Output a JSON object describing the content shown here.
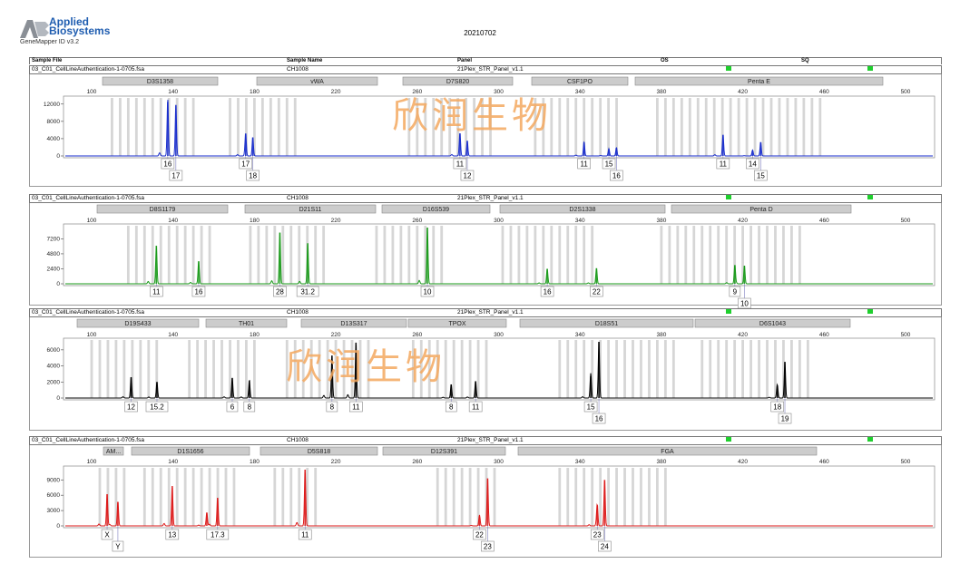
{
  "header": {
    "logo_line1": "Applied",
    "logo_line2": "Biosystems",
    "software": "GeneMapper ID v3.2",
    "date": "20210702",
    "columns": {
      "sample_file": "Sample File",
      "sample_name": "Sample Name",
      "panel": "Panel",
      "os": "OS",
      "sq": "SQ"
    }
  },
  "watermark": "欣润生物",
  "colors": {
    "blue": "#1a2ecc",
    "green": "#1a9a1a",
    "black": "#000000",
    "red": "#dd1a1a",
    "flag": "#1fcf2e",
    "bin": "#c8c8c8",
    "marker": "#cccccc"
  },
  "x_ticks": [
    "100",
    "140",
    "180",
    "220",
    "260",
    "300",
    "340",
    "380",
    "420",
    "460",
    "500"
  ],
  "chart_data": [
    {
      "type": "line",
      "dye": "blue",
      "sample_file": "03_C01_CellLineAuthentication-1-0705.fsa",
      "sample_name": "CH1008",
      "panel": "21Plex_STR_Panel_v1.1",
      "y_ticks": [
        "12000",
        "8000",
        "4000",
        "0"
      ],
      "ylim": [
        0,
        13000
      ],
      "markers": [
        "D3S1358",
        "vWA",
        "D7S820",
        "CSF1PO",
        "Penta E"
      ],
      "peaks": [
        {
          "x": 137.4,
          "y": 12500,
          "label": "16"
        },
        {
          "x": 141.4,
          "y": 11800,
          "label": "17"
        },
        {
          "x": 175.7,
          "y": 5200,
          "label": "17"
        },
        {
          "x": 179.2,
          "y": 4300,
          "label": "18"
        },
        {
          "x": 281.0,
          "y": 5200,
          "label": "11"
        },
        {
          "x": 284.6,
          "y": 3500,
          "label": "12"
        },
        {
          "x": 342.0,
          "y": 3200,
          "label": "11"
        },
        {
          "x": 354.2,
          "y": 1600,
          "label": "15"
        },
        {
          "x": 357.9,
          "y": 1900,
          "label": "16"
        },
        {
          "x": 410.3,
          "y": 4900,
          "label": "11"
        },
        {
          "x": 424.8,
          "y": 1200,
          "label": "14"
        },
        {
          "x": 428.8,
          "y": 3200,
          "label": "15"
        }
      ]
    },
    {
      "type": "line",
      "dye": "green",
      "sample_file": "03_C01_CellLineAuthentication-1-0705.fsa",
      "sample_name": "CH1008",
      "panel": "21Plex_STR_Panel_v1.1",
      "y_ticks": [
        "7200",
        "4800",
        "2400",
        "0"
      ],
      "ylim": [
        0,
        9000
      ],
      "markers": [
        "D8S1179",
        "D21S11",
        "D16S539",
        "D2S1338",
        "Penta D"
      ],
      "peaks": [
        {
          "x": 131.8,
          "y": 6100,
          "label": "11"
        },
        {
          "x": 152.6,
          "y": 3600,
          "label": "16"
        },
        {
          "x": 192.5,
          "y": 8200,
          "label": "28"
        },
        {
          "x": 206.2,
          "y": 6500,
          "label": "31.2"
        },
        {
          "x": 265.0,
          "y": 9000,
          "label": "10"
        },
        {
          "x": 323.9,
          "y": 2400,
          "label": "16"
        },
        {
          "x": 348.1,
          "y": 2500,
          "label": "22"
        },
        {
          "x": 416.1,
          "y": 3000,
          "label": "9"
        },
        {
          "x": 420.8,
          "y": 2900,
          "label": "10"
        }
      ]
    },
    {
      "type": "line",
      "dye": "black",
      "sample_file": "03_C01_CellLineAuthentication-1-0705.fsa",
      "sample_name": "CH1008",
      "panel": "21Plex_STR_Panel_v1.1",
      "y_ticks": [
        "6000",
        "4000",
        "2000",
        "0"
      ],
      "ylim": [
        0,
        7000
      ],
      "markers": [
        "D19S433",
        "TH01",
        "D13S317",
        "TPOX",
        "D18S51",
        "D6S1043"
      ],
      "peaks": [
        {
          "x": 119.4,
          "y": 2600,
          "label": "12"
        },
        {
          "x": 132.1,
          "y": 2000,
          "label": "15.2"
        },
        {
          "x": 169.1,
          "y": 2500,
          "label": "6"
        },
        {
          "x": 177.5,
          "y": 2200,
          "label": "8"
        },
        {
          "x": 218.1,
          "y": 5300,
          "label": "8"
        },
        {
          "x": 229.9,
          "y": 6900,
          "label": "11"
        },
        {
          "x": 276.7,
          "y": 1700,
          "label": "8"
        },
        {
          "x": 288.7,
          "y": 2100,
          "label": "11"
        },
        {
          "x": 345.3,
          "y": 2700,
          "label": "15"
        },
        {
          "x": 349.3,
          "y": 7000,
          "label": "16"
        },
        {
          "x": 437.0,
          "y": 1500,
          "label": "18"
        },
        {
          "x": 440.7,
          "y": 4500,
          "label": "19"
        }
      ]
    },
    {
      "type": "line",
      "dye": "red",
      "sample_file": "03_C01_CellLineAuthentication-1-0705.fsa",
      "sample_name": "CH1008",
      "panel": "21Plex_STR_Panel_v1.1",
      "y_ticks": [
        "9000",
        "6000",
        "3000",
        "0"
      ],
      "ylim": [
        0,
        11000
      ],
      "markers": [
        "AM...",
        "D1S1656",
        "D5S818",
        "D12S391",
        "FGA"
      ],
      "peaks": [
        {
          "x": 107.6,
          "y": 6200,
          "label": "X"
        },
        {
          "x": 112.9,
          "y": 4700,
          "label": "Y"
        },
        {
          "x": 139.6,
          "y": 7800,
          "label": "13"
        },
        {
          "x": 156.6,
          "y": 2600,
          "label": ""
        },
        {
          "x": 161.9,
          "y": 5500,
          "label": "17.3"
        },
        {
          "x": 204.9,
          "y": 11000,
          "label": "11"
        },
        {
          "x": 290.6,
          "y": 1600,
          "label": "22"
        },
        {
          "x": 294.6,
          "y": 9300,
          "label": "23"
        },
        {
          "x": 348.5,
          "y": 4000,
          "label": "23"
        },
        {
          "x": 352.1,
          "y": 9000,
          "label": "24"
        }
      ]
    }
  ]
}
